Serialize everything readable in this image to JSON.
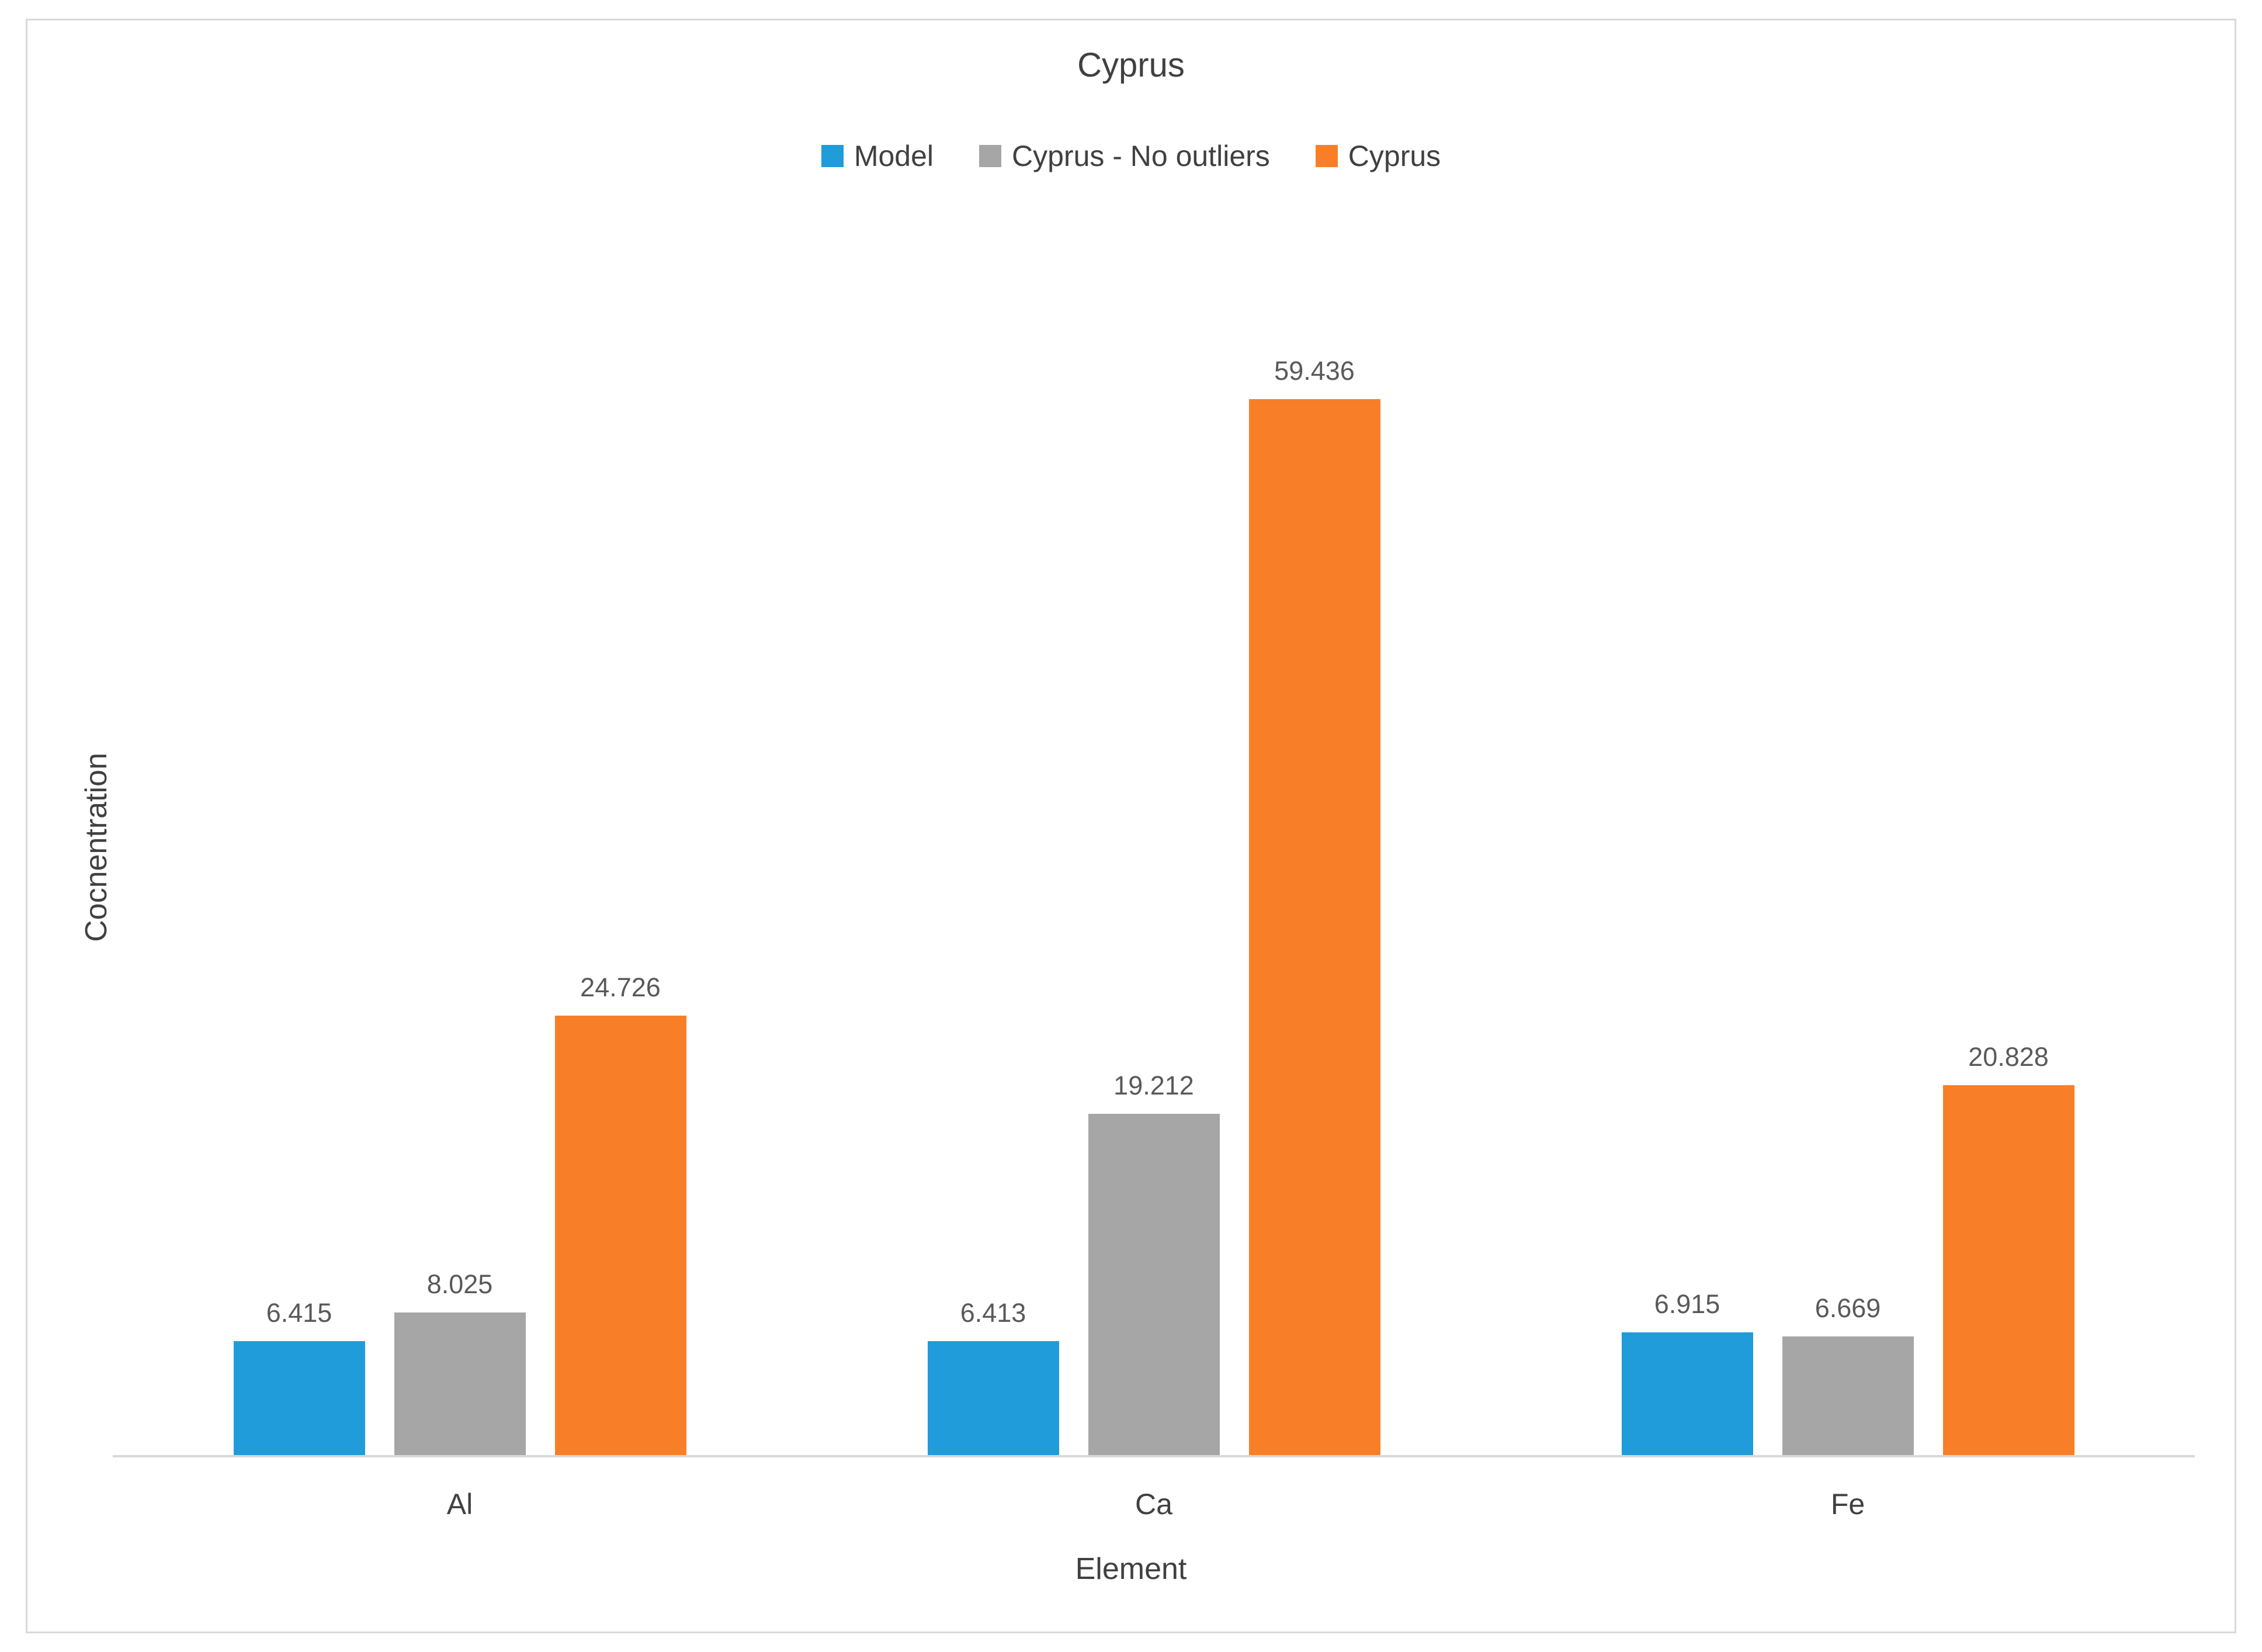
{
  "chart_data": {
    "type": "bar",
    "title": "Cyprus",
    "xlabel": "Element",
    "ylabel": "Cocnentration",
    "categories": [
      "Al",
      "Ca",
      "Fe"
    ],
    "series": [
      {
        "name": "Model",
        "color": "#1F9CD9",
        "values": [
          6.415,
          6.413,
          6.915
        ]
      },
      {
        "name": "Cyprus - No outliers",
        "color": "#A6A6A6",
        "values": [
          8.025,
          19.212,
          6.669
        ]
      },
      {
        "name": "Cyprus",
        "color": "#F97E28",
        "values": [
          24.726,
          59.436,
          20.828
        ]
      }
    ],
    "data_labels": true,
    "ylim": [
      0,
      62.5
    ],
    "grid": false,
    "legend_position": "top",
    "axis_line_color": "#D9D9D9",
    "value_label_color": "#595959",
    "text_color": "#404040"
  }
}
